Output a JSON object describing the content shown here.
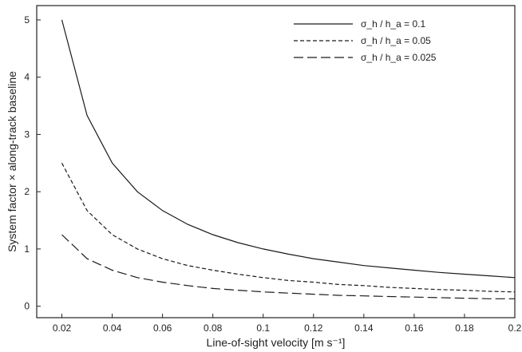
{
  "chart_data": {
    "type": "line",
    "xlabel": "Line-of-sight velocity [m s⁻¹]",
    "ylabel": "System factor × along-track baseline",
    "x": [
      0.02,
      0.03,
      0.04,
      0.05,
      0.06,
      0.07,
      0.08,
      0.09,
      0.1,
      0.11,
      0.12,
      0.13,
      0.14,
      0.15,
      0.16,
      0.17,
      0.18,
      0.19,
      0.2
    ],
    "xlim": [
      0.01,
      0.2
    ],
    "ylim": [
      -0.2,
      5.25
    ],
    "x_ticks": [
      "0.02",
      "0.04",
      "0.06",
      "0.08",
      "0.1",
      "0.12",
      "0.14",
      "0.16",
      "0.18",
      "0.2"
    ],
    "x_tick_values": [
      0.02,
      0.04,
      0.06,
      0.08,
      0.1,
      0.12,
      0.14,
      0.16,
      0.18,
      0.2
    ],
    "y_ticks": [
      "0",
      "1",
      "2",
      "3",
      "4",
      "5"
    ],
    "y_tick_values": [
      0,
      1,
      2,
      3,
      4,
      5
    ],
    "grid": false,
    "legend_position": "top-right",
    "series": [
      {
        "name": "σ_h / h_a = 0.1",
        "dash": "solid",
        "values": [
          5.0,
          3.33,
          2.5,
          2.0,
          1.67,
          1.43,
          1.25,
          1.11,
          1.0,
          0.91,
          0.83,
          0.77,
          0.71,
          0.67,
          0.63,
          0.59,
          0.56,
          0.53,
          0.5
        ]
      },
      {
        "name": "σ_h / h_a = 0.05",
        "dash": "short",
        "values": [
          2.5,
          1.67,
          1.25,
          1.0,
          0.83,
          0.71,
          0.63,
          0.56,
          0.5,
          0.45,
          0.42,
          0.38,
          0.36,
          0.33,
          0.31,
          0.29,
          0.28,
          0.26,
          0.25
        ]
      },
      {
        "name": "σ_h / h_a = 0.025",
        "dash": "long",
        "values": [
          1.25,
          0.83,
          0.63,
          0.5,
          0.42,
          0.36,
          0.31,
          0.28,
          0.25,
          0.23,
          0.21,
          0.19,
          0.18,
          0.17,
          0.16,
          0.15,
          0.14,
          0.13,
          0.13
        ]
      }
    ]
  },
  "colors": {
    "line": "#1a1a1a",
    "frame": "#222222",
    "background": "#ffffff"
  }
}
